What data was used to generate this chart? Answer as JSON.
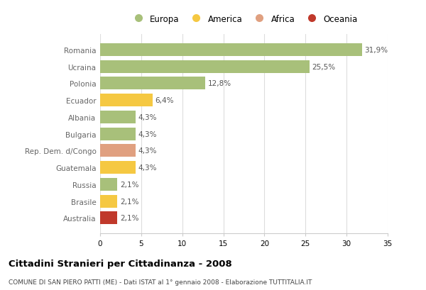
{
  "categories": [
    "Romania",
    "Ucraina",
    "Polonia",
    "Ecuador",
    "Albania",
    "Bulgaria",
    "Rep. Dem. d/Congo",
    "Guatemala",
    "Russia",
    "Brasile",
    "Australia"
  ],
  "values": [
    31.9,
    25.5,
    12.8,
    6.4,
    4.3,
    4.3,
    4.3,
    4.3,
    2.1,
    2.1,
    2.1
  ],
  "labels": [
    "31,9%",
    "25,5%",
    "12,8%",
    "6,4%",
    "4,3%",
    "4,3%",
    "4,3%",
    "4,3%",
    "2,1%",
    "2,1%",
    "2,1%"
  ],
  "colors": [
    "#a8c07a",
    "#a8c07a",
    "#a8c07a",
    "#f5c842",
    "#a8c07a",
    "#a8c07a",
    "#e0a080",
    "#f5c842",
    "#a8c07a",
    "#f5c842",
    "#c0392b"
  ],
  "legend_labels": [
    "Europa",
    "America",
    "Africa",
    "Oceania"
  ],
  "legend_colors": [
    "#a8c07a",
    "#f5c842",
    "#e0a080",
    "#c0392b"
  ],
  "xlim": [
    0,
    35
  ],
  "xticks": [
    0,
    5,
    10,
    15,
    20,
    25,
    30,
    35
  ],
  "title": "Cittadini Stranieri per Cittadinanza - 2008",
  "subtitle": "COMUNE DI SAN PIERO PATTI (ME) - Dati ISTAT al 1° gennaio 2008 - Elaborazione TUTTITALIA.IT",
  "bg_color": "#ffffff",
  "bar_height": 0.75,
  "grid_color": "#dddddd",
  "label_color": "#555555",
  "tick_label_color": "#666666"
}
